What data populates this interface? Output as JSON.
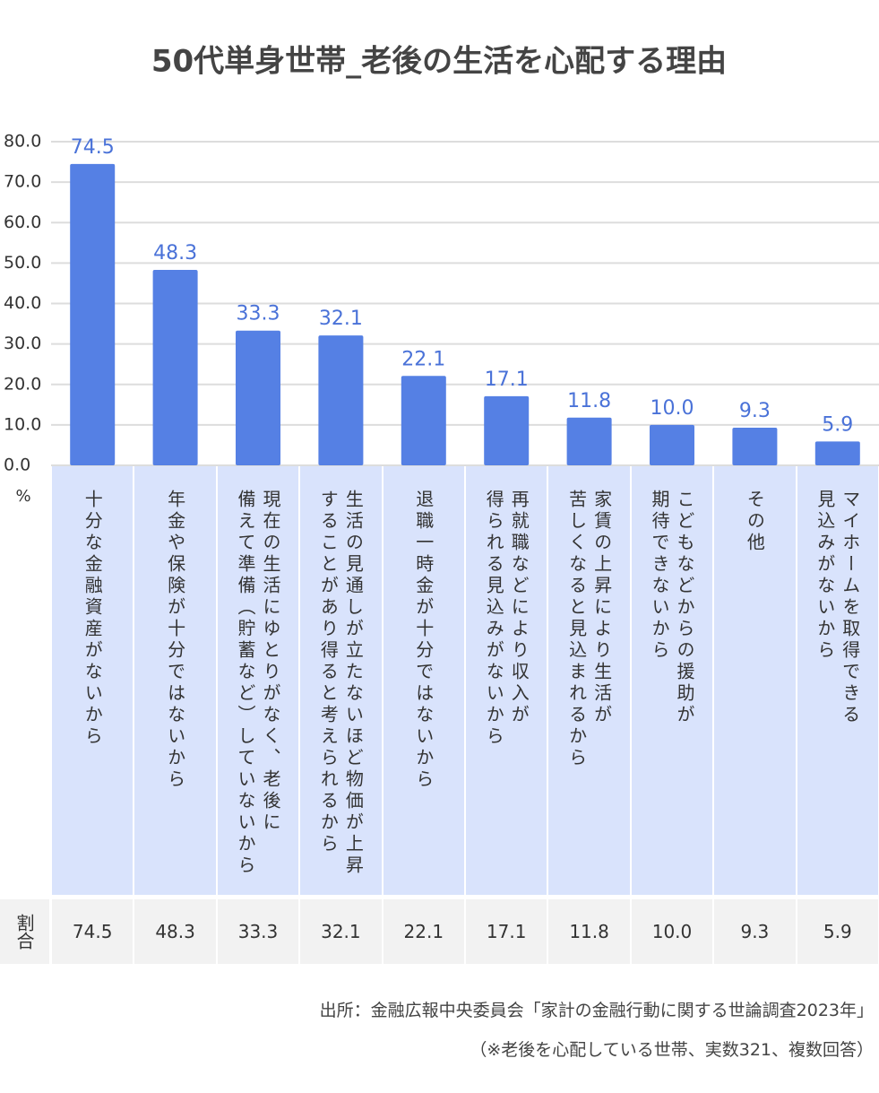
{
  "chart_data": {
    "type": "bar",
    "title": "50代単身世帯_老後の生活を心配する理由",
    "y_unit": "%",
    "categories": [
      "十分な金融資産がないから",
      "年金や保険が十分ではないから",
      "現在の生活にゆとりがなく、老後に\n備えて準備（貯蓄など）していないから",
      "生活の見通しが立たないほど物価が上昇\nすることがあり得ると考えられるから",
      "退職一時金が十分ではないから",
      "再就職などにより収入が\n得られる見込みがないから",
      "家賃の上昇により生活が\n苦しくなると見込まれるから",
      "こどもなどからの援助が\n期待できないから",
      "その他",
      "マイホームを取得できる\n見込みがないから"
    ],
    "values": [
      74.5,
      48.3,
      33.3,
      32.1,
      22.1,
      17.1,
      11.8,
      10.0,
      9.3,
      5.9
    ],
    "value_labels": [
      "74.5",
      "48.3",
      "33.3",
      "32.1",
      "22.1",
      "17.1",
      "11.8",
      "10.0",
      "9.3",
      "5.9"
    ],
    "color": "#5580e4",
    "label_color": "#4a72d8",
    "ylim": [
      0,
      80
    ],
    "yticks": [
      {
        "value": 0,
        "label": "0.0"
      },
      {
        "value": 10,
        "label": "10.0"
      },
      {
        "value": 20,
        "label": "20.0"
      },
      {
        "value": 30,
        "label": "30.0"
      },
      {
        "value": 40,
        "label": "40.0"
      },
      {
        "value": 50,
        "label": "50.0"
      },
      {
        "value": 60,
        "label": "60.0"
      },
      {
        "value": 70,
        "label": "70.0"
      },
      {
        "value": 80,
        "label": "80.0"
      }
    ],
    "grid": true,
    "table": {
      "row_label": "割合"
    },
    "source": "出所：金融広報中央委員会「家計の金融行動に関する世論調査2023年」",
    "note": "（※老後を心配している世帯、実数321、複数回答）"
  }
}
